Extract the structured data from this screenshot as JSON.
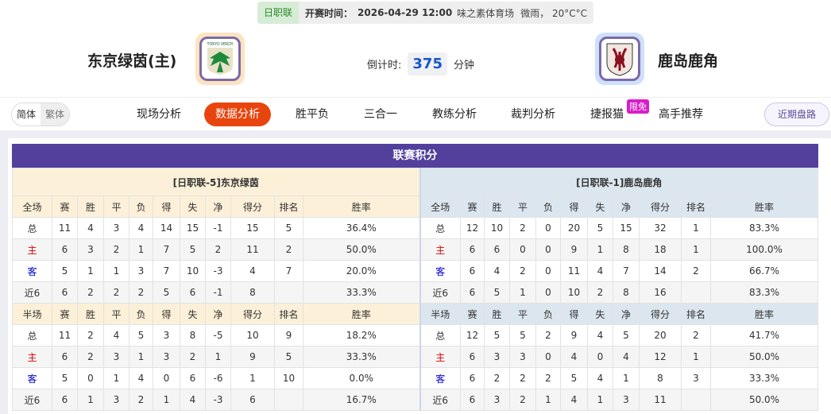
{
  "header": {
    "league": "日职联",
    "kickoff_label": "开赛时间：",
    "kickoff": "2026-04-29 12:00",
    "venue": "味之素体育场",
    "weather": "微雨， 20°C°C",
    "home_team": "东京绿茵(主)",
    "away_team": "鹿岛鹿角",
    "countdown_label": "倒计时:",
    "countdown": "375",
    "countdown_unit": "分钟",
    "home_logo_text": "TOKYO VERDY"
  },
  "nav": {
    "lang": [
      "简体",
      "繁体"
    ],
    "tabs": [
      "现场分析",
      "数据分析",
      "胜平负",
      "三合一",
      "教练分析",
      "裁判分析",
      "捷报猫",
      "高手推荐"
    ],
    "active": "数据分析",
    "badge": "限免",
    "recent": "近期盘路"
  },
  "colors": {
    "accent": "#e8440e",
    "title_bar": "#52409c",
    "home_header": "#fcf0d8",
    "away_header": "#dce6ef"
  },
  "standings": {
    "title": "联赛积分",
    "home_header": "[日职联-5]东京绿茵",
    "away_header": "[日职联-1]鹿岛鹿角",
    "columns": [
      "赛",
      "胜",
      "平",
      "负",
      "得",
      "失",
      "净",
      "得分",
      "排名",
      "胜率"
    ],
    "sections": [
      {
        "label": "全场",
        "rows": [
          {
            "label": "总",
            "home": [
              "11",
              "4",
              "3",
              "4",
              "14",
              "15",
              "-1",
              "15",
              "5",
              "36.4%"
            ],
            "away": [
              "12",
              "10",
              "2",
              "0",
              "20",
              "5",
              "15",
              "32",
              "1",
              "83.3%"
            ]
          },
          {
            "label": "主",
            "home": [
              "6",
              "3",
              "2",
              "1",
              "7",
              "5",
              "2",
              "11",
              "2",
              "50.0%"
            ],
            "away": [
              "6",
              "6",
              "0",
              "0",
              "9",
              "1",
              "8",
              "18",
              "1",
              "100.0%"
            ]
          },
          {
            "label": "客",
            "home": [
              "5",
              "1",
              "1",
              "3",
              "7",
              "10",
              "-3",
              "4",
              "7",
              "20.0%"
            ],
            "away": [
              "6",
              "4",
              "2",
              "0",
              "11",
              "4",
              "7",
              "14",
              "2",
              "66.7%"
            ]
          },
          {
            "label": "近6",
            "home": [
              "6",
              "2",
              "2",
              "2",
              "5",
              "6",
              "-1",
              "8",
              "",
              "33.3%"
            ],
            "away": [
              "6",
              "5",
              "1",
              "0",
              "10",
              "2",
              "8",
              "16",
              "",
              "83.3%"
            ]
          }
        ]
      },
      {
        "label": "半场",
        "rows": [
          {
            "label": "总",
            "home": [
              "11",
              "2",
              "4",
              "5",
              "3",
              "8",
              "-5",
              "10",
              "9",
              "18.2%"
            ],
            "away": [
              "12",
              "5",
              "5",
              "2",
              "9",
              "4",
              "5",
              "20",
              "2",
              "41.7%"
            ]
          },
          {
            "label": "主",
            "home": [
              "6",
              "2",
              "3",
              "1",
              "3",
              "2",
              "1",
              "9",
              "5",
              "33.3%"
            ],
            "away": [
              "6",
              "3",
              "3",
              "0",
              "4",
              "0",
              "4",
              "12",
              "1",
              "50.0%"
            ]
          },
          {
            "label": "客",
            "home": [
              "5",
              "0",
              "1",
              "4",
              "0",
              "6",
              "-6",
              "1",
              "10",
              "0.0%"
            ],
            "away": [
              "6",
              "2",
              "2",
              "2",
              "5",
              "4",
              "1",
              "8",
              "3",
              "33.3%"
            ]
          },
          {
            "label": "近6",
            "home": [
              "6",
              "1",
              "3",
              "2",
              "1",
              "4",
              "-3",
              "6",
              "",
              "16.7%"
            ],
            "away": [
              "6",
              "3",
              "2",
              "1",
              "4",
              "1",
              "3",
              "11",
              "",
              "50.0%"
            ]
          }
        ]
      }
    ]
  }
}
